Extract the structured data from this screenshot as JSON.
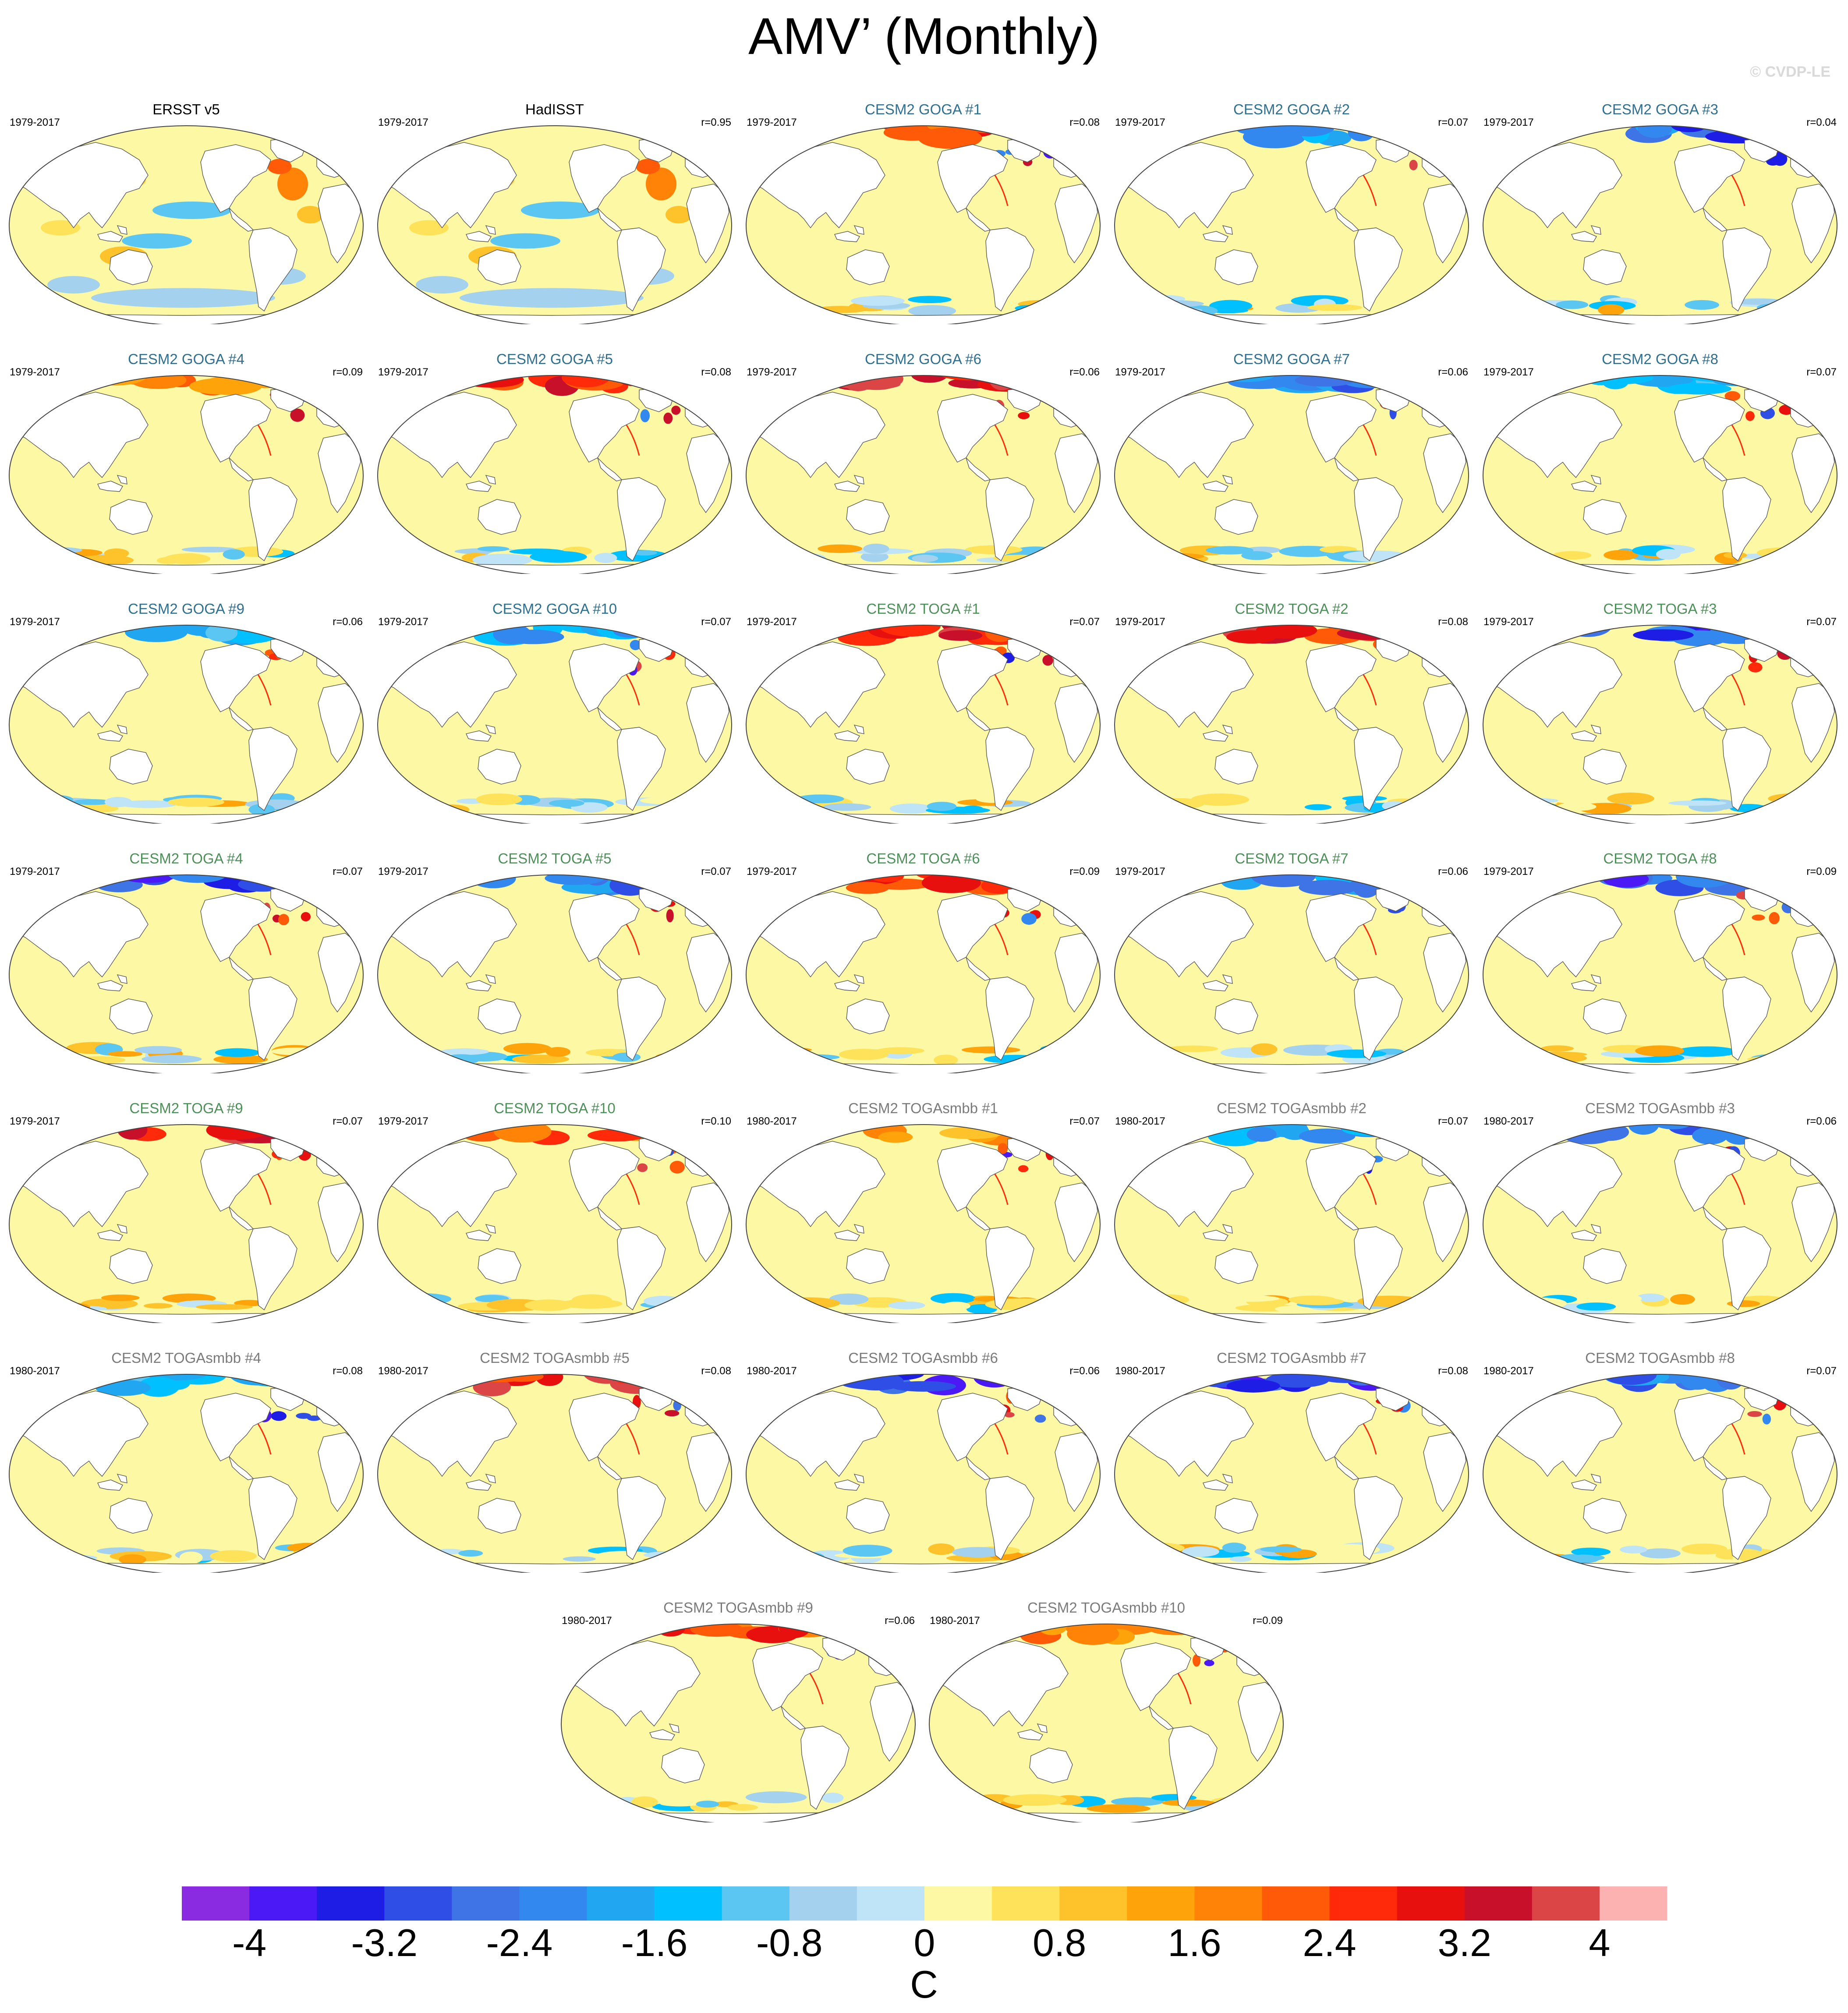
{
  "figure": {
    "title": "AMV’ (Monthly)",
    "copyright": "© CVDP-LE",
    "units": "C"
  },
  "colors": {
    "palette": [
      "#8a2be2",
      "#4b19f5",
      "#1d1de6",
      "#2f4ee6",
      "#3f74e6",
      "#3388f0",
      "#21a6f2",
      "#00c0ff",
      "#5cc6f2",
      "#a4d2ee",
      "#bfe3f7",
      "#fdf8a4",
      "#fee35a",
      "#fec22a",
      "#fea40a",
      "#ff8306",
      "#ff5a08",
      "#ff2a0a",
      "#e8100e",
      "#c8102a",
      "#db4545",
      "#fdb2b2"
    ],
    "ocean_neutral": "#fdf8a4",
    "land": "#ffffff",
    "title_obs": "#000000",
    "title_goga": "#2f6f8f",
    "title_toga": "#4f8f5a",
    "title_smbb": "#7b7b7b"
  },
  "colorbar": {
    "levels": [
      -4.0,
      -3.6,
      -3.2,
      -2.8,
      -2.4,
      -2.0,
      -1.6,
      -1.2,
      -0.8,
      -0.4,
      0.0,
      0.4,
      0.8,
      1.2,
      1.6,
      2.0,
      2.4,
      2.8,
      3.2,
      3.6,
      4.0
    ],
    "labels": [
      "-4",
      "-3.2",
      "-2.4",
      "-1.6",
      "-0.8",
      "0",
      "0.8",
      "1.6",
      "2.4",
      "3.2",
      "4"
    ]
  },
  "panels": [
    {
      "title": "ERSST v5",
      "years": "1979-2017",
      "r": "",
      "group": "obs",
      "north": 0,
      "pattern": "obs"
    },
    {
      "title": "HadISST",
      "years": "1979-2017",
      "r": "r=0.95",
      "group": "obs",
      "north": 0,
      "pattern": "obs"
    },
    {
      "title": "CESM2 GOGA #1",
      "years": "1979-2017",
      "r": "r=0.08",
      "group": "goga",
      "north": 0.8,
      "pattern": "model"
    },
    {
      "title": "CESM2 GOGA #2",
      "years": "1979-2017",
      "r": "r=0.07",
      "group": "goga",
      "north": -0.6,
      "pattern": "model"
    },
    {
      "title": "CESM2 GOGA #3",
      "years": "1979-2017",
      "r": "r=0.04",
      "group": "goga",
      "north": -0.9,
      "pattern": "model"
    },
    {
      "title": "CESM2 GOGA #4",
      "years": "1979-2017",
      "r": "r=0.09",
      "group": "goga",
      "north": 0.6,
      "pattern": "model"
    },
    {
      "title": "CESM2 GOGA #5",
      "years": "1979-2017",
      "r": "r=0.08",
      "group": "goga",
      "north": 1,
      "pattern": "model"
    },
    {
      "title": "CESM2 GOGA #6",
      "years": "1979-2017",
      "r": "r=0.06",
      "group": "goga",
      "north": 1,
      "pattern": "model"
    },
    {
      "title": "CESM2 GOGA #7",
      "years": "1979-2017",
      "r": "r=0.06",
      "group": "goga",
      "north": -0.8,
      "pattern": "model"
    },
    {
      "title": "CESM2 GOGA #8",
      "years": "1979-2017",
      "r": "r=0.07",
      "group": "goga",
      "north": -0.5,
      "pattern": "model"
    },
    {
      "title": "CESM2 GOGA #9",
      "years": "1979-2017",
      "r": "r=0.06",
      "group": "goga",
      "north": -0.5,
      "pattern": "model"
    },
    {
      "title": "CESM2 GOGA #10",
      "years": "1979-2017",
      "r": "r=0.07",
      "group": "goga",
      "north": -0.6,
      "pattern": "model"
    },
    {
      "title": "CESM2 TOGA #1",
      "years": "1979-2017",
      "r": "r=0.07",
      "group": "toga",
      "north": 1,
      "pattern": "model"
    },
    {
      "title": "CESM2 TOGA #2",
      "years": "1979-2017",
      "r": "r=0.08",
      "group": "toga",
      "north": 1,
      "pattern": "model"
    },
    {
      "title": "CESM2 TOGA #3",
      "years": "1979-2017",
      "r": "r=0.07",
      "group": "toga",
      "north": -1,
      "pattern": "model"
    },
    {
      "title": "CESM2 TOGA #4",
      "years": "1979-2017",
      "r": "r=0.07",
      "group": "toga",
      "north": -1,
      "pattern": "model"
    },
    {
      "title": "CESM2 TOGA #5",
      "years": "1979-2017",
      "r": "r=0.07",
      "group": "toga",
      "north": -0.8,
      "pattern": "model"
    },
    {
      "title": "CESM2 TOGA #6",
      "years": "1979-2017",
      "r": "r=0.09",
      "group": "toga",
      "north": 0.9,
      "pattern": "model"
    },
    {
      "title": "CESM2 TOGA #7",
      "years": "1979-2017",
      "r": "r=0.06",
      "group": "toga",
      "north": -0.7,
      "pattern": "model"
    },
    {
      "title": "CESM2 TOGA #8",
      "years": "1979-2017",
      "r": "r=0.09",
      "group": "toga",
      "north": -1,
      "pattern": "model"
    },
    {
      "title": "CESM2 TOGA #9",
      "years": "1979-2017",
      "r": "r=0.07",
      "group": "toga",
      "north": 1,
      "pattern": "model"
    },
    {
      "title": "CESM2 TOGA #10",
      "years": "1979-2017",
      "r": "r=0.10",
      "group": "toga",
      "north": 0.7,
      "pattern": "model"
    },
    {
      "title": "CESM2 TOGAsmbb #1",
      "years": "1980-2017",
      "r": "r=0.07",
      "group": "smbb",
      "north": 0.5,
      "pattern": "model"
    },
    {
      "title": "CESM2 TOGAsmbb #2",
      "years": "1980-2017",
      "r": "r=0.07",
      "group": "smbb",
      "north": -0.6,
      "pattern": "model"
    },
    {
      "title": "CESM2 TOGAsmbb #3",
      "years": "1980-2017",
      "r": "r=0.06",
      "group": "smbb",
      "north": -0.8,
      "pattern": "model"
    },
    {
      "title": "CESM2 TOGAsmbb #4",
      "years": "1980-2017",
      "r": "r=0.08",
      "group": "smbb",
      "north": -0.5,
      "pattern": "model"
    },
    {
      "title": "CESM2 TOGAsmbb #5",
      "years": "1980-2017",
      "r": "r=0.08",
      "group": "smbb",
      "north": 1,
      "pattern": "model"
    },
    {
      "title": "CESM2 TOGAsmbb #6",
      "years": "1980-2017",
      "r": "r=0.06",
      "group": "smbb",
      "north": -1,
      "pattern": "model"
    },
    {
      "title": "CESM2 TOGAsmbb #7",
      "years": "1980-2017",
      "r": "r=0.08",
      "group": "smbb",
      "north": -1,
      "pattern": "model"
    },
    {
      "title": "CESM2 TOGAsmbb #8",
      "years": "1980-2017",
      "r": "r=0.07",
      "group": "smbb",
      "north": -0.8,
      "pattern": "model"
    },
    {
      "title": "CESM2 TOGAsmbb #9",
      "years": "1980-2017",
      "r": "r=0.06",
      "group": "smbb",
      "north": 0.8,
      "pattern": "model"
    },
    {
      "title": "CESM2 TOGAsmbb #10",
      "years": "1980-2017",
      "r": "r=0.09",
      "group": "smbb",
      "north": 0.6,
      "pattern": "model"
    }
  ]
}
